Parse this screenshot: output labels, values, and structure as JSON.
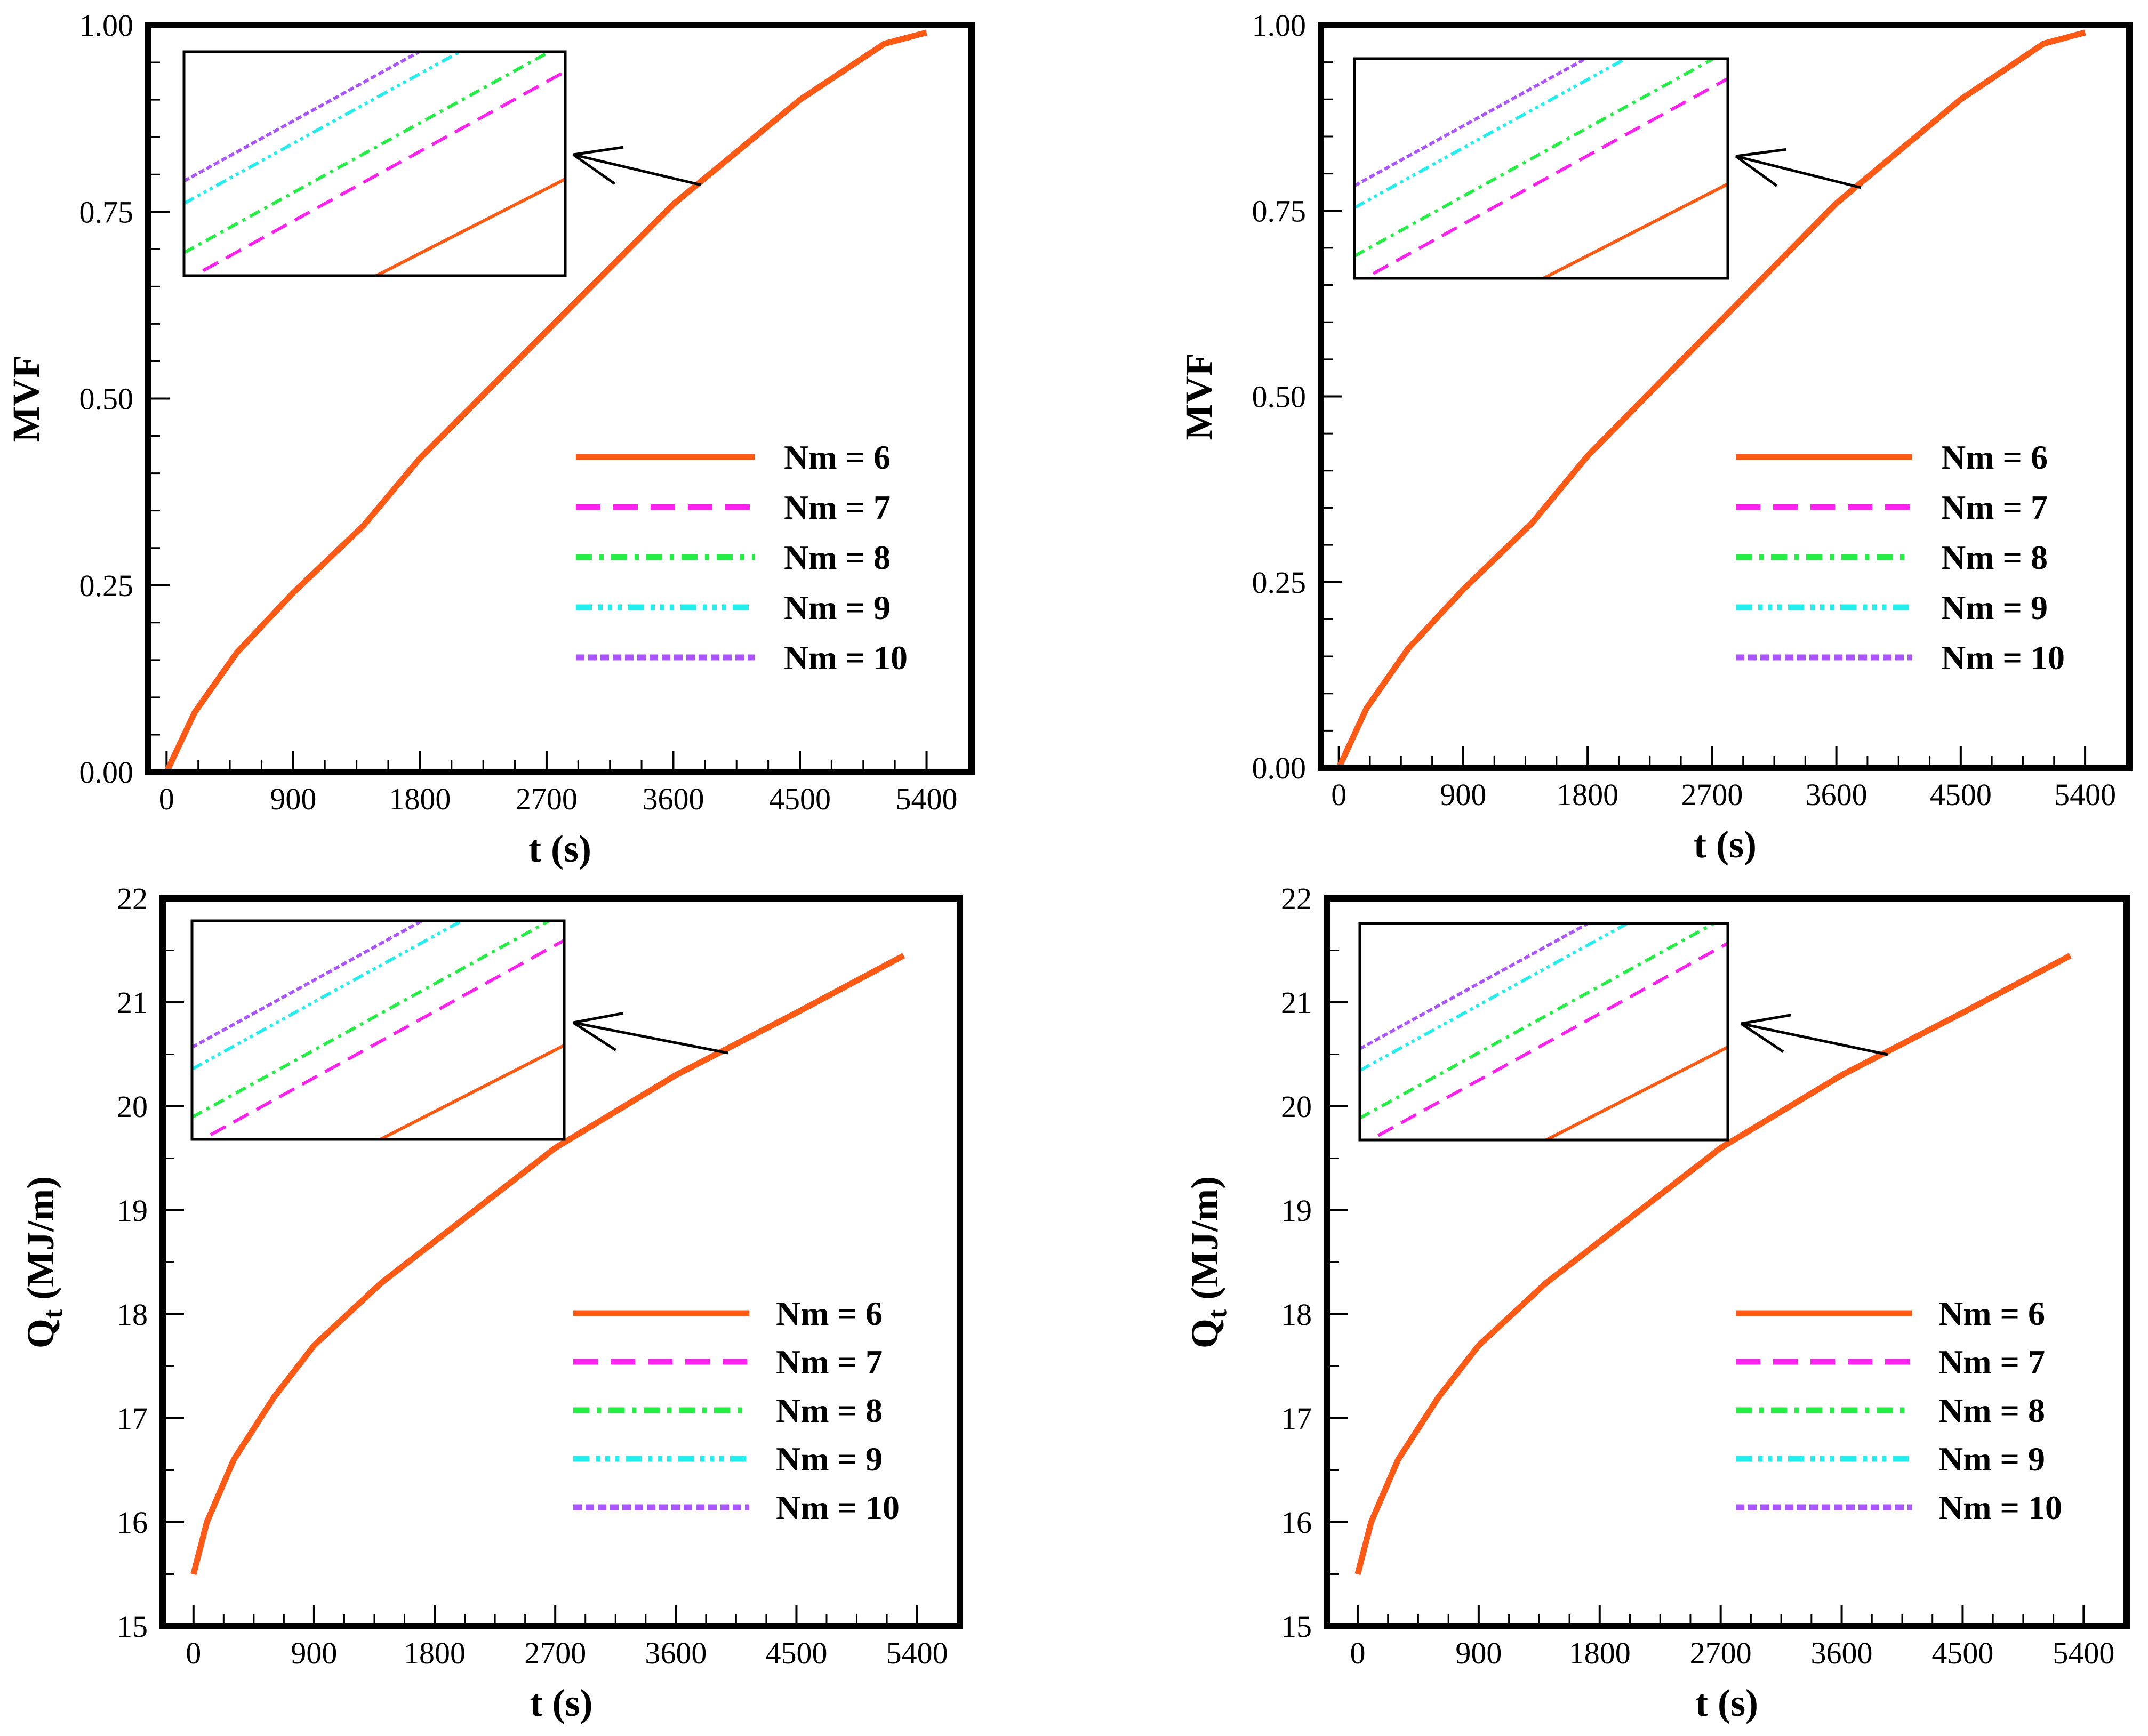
{
  "colors": {
    "nm6": "#ff5a14",
    "nm7": "#ff22ee",
    "nm8": "#22ee44",
    "nm9": "#22eeee",
    "nm10": "#aa55ff",
    "frame": "#000000"
  },
  "chart_data": [
    {
      "type": "line",
      "id": "mvf-left",
      "xlabel": "t (s)",
      "ylabel": "MVF",
      "xlim": [
        -130,
        5720
      ],
      "ylim": [
        0,
        1.0
      ],
      "xticks": [
        "0",
        "900",
        "1800",
        "2700",
        "3600",
        "4500",
        "5400"
      ],
      "yticks": [
        "0.00",
        "0.25",
        "0.50",
        "0.75",
        "1.00"
      ],
      "x": [
        0,
        200,
        500,
        900,
        1400,
        1800,
        2700,
        3600,
        4500,
        5100,
        5400
      ],
      "series": [
        {
          "name": "Nm = 6",
          "values": [
            0.0,
            0.08,
            0.16,
            0.24,
            0.33,
            0.42,
            0.59,
            0.76,
            0.9,
            0.975,
            0.99
          ]
        },
        {
          "name": "Nm = 7",
          "values": [
            0.0,
            0.08,
            0.16,
            0.24,
            0.33,
            0.42,
            0.59,
            0.76,
            0.9,
            0.975,
            0.99
          ]
        },
        {
          "name": "Nm = 8",
          "values": [
            0.0,
            0.08,
            0.16,
            0.24,
            0.33,
            0.42,
            0.59,
            0.76,
            0.9,
            0.975,
            0.99
          ]
        },
        {
          "name": "Nm = 9",
          "values": [
            0.0,
            0.08,
            0.16,
            0.24,
            0.33,
            0.42,
            0.59,
            0.76,
            0.9,
            0.975,
            0.99
          ]
        },
        {
          "name": "Nm = 10",
          "values": [
            0.0,
            0.08,
            0.16,
            0.24,
            0.33,
            0.42,
            0.59,
            0.76,
            0.9,
            0.975,
            0.99
          ]
        }
      ],
      "legend": [
        "Nm = 6",
        "Nm = 7",
        "Nm = 8",
        "Nm = 9",
        "Nm = 10"
      ]
    },
    {
      "type": "line",
      "id": "mvf-right",
      "xlabel": "t (s)",
      "ylabel": "MVF",
      "xlim": [
        -130,
        5720
      ],
      "ylim": [
        0,
        1.0
      ],
      "xticks": [
        "0",
        "900",
        "1800",
        "2700",
        "3600",
        "4500",
        "5400"
      ],
      "yticks": [
        "0.00",
        "0.25",
        "0.50",
        "0.75",
        "1.00"
      ],
      "x": [
        0,
        200,
        500,
        900,
        1400,
        1800,
        2700,
        3600,
        4500,
        5100,
        5400
      ],
      "series": [
        {
          "name": "Nm = 6",
          "values": [
            0.0,
            0.08,
            0.16,
            0.24,
            0.33,
            0.42,
            0.59,
            0.76,
            0.9,
            0.975,
            0.99
          ]
        },
        {
          "name": "Nm = 7",
          "values": [
            0.0,
            0.08,
            0.16,
            0.24,
            0.33,
            0.42,
            0.59,
            0.76,
            0.9,
            0.975,
            0.99
          ]
        },
        {
          "name": "Nm = 8",
          "values": [
            0.0,
            0.08,
            0.16,
            0.24,
            0.33,
            0.42,
            0.59,
            0.76,
            0.9,
            0.975,
            0.99
          ]
        },
        {
          "name": "Nm = 9",
          "values": [
            0.0,
            0.08,
            0.16,
            0.24,
            0.33,
            0.42,
            0.59,
            0.76,
            0.9,
            0.975,
            0.99
          ]
        },
        {
          "name": "Nm = 10",
          "values": [
            0.0,
            0.08,
            0.16,
            0.24,
            0.33,
            0.42,
            0.59,
            0.76,
            0.9,
            0.975,
            0.99
          ]
        }
      ],
      "legend": [
        "Nm = 6",
        "Nm = 7",
        "Nm = 8",
        "Nm = 9",
        "Nm = 10"
      ]
    },
    {
      "type": "line",
      "id": "qt-left",
      "xlabel": "t (s)",
      "ylabel": "Qt (MJ/m)",
      "xlim": [
        -230,
        5720
      ],
      "ylim": [
        15,
        22
      ],
      "xticks": [
        "0",
        "900",
        "1800",
        "2700",
        "3600",
        "4500",
        "5400"
      ],
      "yticks": [
        "15",
        "16",
        "17",
        "18",
        "19",
        "20",
        "21",
        "22"
      ],
      "x": [
        0,
        100,
        300,
        600,
        900,
        1400,
        1800,
        2700,
        3600,
        4500,
        5300
      ],
      "series": [
        {
          "name": "Nm = 6",
          "values": [
            15.5,
            16.0,
            16.6,
            17.2,
            17.7,
            18.3,
            18.7,
            19.6,
            20.3,
            20.9,
            21.45
          ]
        },
        {
          "name": "Nm = 7",
          "values": [
            15.5,
            16.0,
            16.6,
            17.2,
            17.7,
            18.3,
            18.7,
            19.6,
            20.3,
            20.9,
            21.45
          ]
        },
        {
          "name": "Nm = 8",
          "values": [
            15.5,
            16.0,
            16.6,
            17.2,
            17.7,
            18.3,
            18.7,
            19.6,
            20.3,
            20.9,
            21.45
          ]
        },
        {
          "name": "Nm = 9",
          "values": [
            15.5,
            16.0,
            16.6,
            17.2,
            17.7,
            18.3,
            18.7,
            19.6,
            20.3,
            20.9,
            21.45
          ]
        },
        {
          "name": "Nm = 10",
          "values": [
            15.5,
            16.0,
            16.6,
            17.2,
            17.7,
            18.3,
            18.7,
            19.6,
            20.3,
            20.9,
            21.45
          ]
        }
      ],
      "legend": [
        "Nm = 6",
        "Nm = 7",
        "Nm = 8",
        "Nm = 9",
        "Nm = 10"
      ]
    },
    {
      "type": "line",
      "id": "qt-right",
      "xlabel": "t (s)",
      "ylabel": "Qt (MJ/m)",
      "xlim": [
        -230,
        5720
      ],
      "ylim": [
        15,
        22
      ],
      "xticks": [
        "0",
        "900",
        "1800",
        "2700",
        "3600",
        "4500",
        "5400"
      ],
      "yticks": [
        "15",
        "16",
        "17",
        "18",
        "19",
        "20",
        "21",
        "22"
      ],
      "x": [
        0,
        100,
        300,
        600,
        900,
        1400,
        1800,
        2700,
        3600,
        4500,
        5300
      ],
      "series": [
        {
          "name": "Nm = 6",
          "values": [
            15.5,
            16.0,
            16.6,
            17.2,
            17.7,
            18.3,
            18.7,
            19.6,
            20.3,
            20.9,
            21.45
          ]
        },
        {
          "name": "Nm = 7",
          "values": [
            15.5,
            16.0,
            16.6,
            17.2,
            17.7,
            18.3,
            18.7,
            19.6,
            20.3,
            20.9,
            21.45
          ]
        },
        {
          "name": "Nm = 8",
          "values": [
            15.5,
            16.0,
            16.6,
            17.2,
            17.7,
            18.3,
            18.7,
            19.6,
            20.3,
            20.9,
            21.45
          ]
        },
        {
          "name": "Nm = 9",
          "values": [
            15.5,
            16.0,
            16.6,
            17.2,
            17.7,
            18.3,
            18.7,
            19.6,
            20.3,
            20.9,
            21.45
          ]
        },
        {
          "name": "Nm = 10",
          "values": [
            15.5,
            16.0,
            16.6,
            17.2,
            17.7,
            18.3,
            18.7,
            19.6,
            20.3,
            20.9,
            21.45
          ]
        }
      ],
      "legend": [
        "Nm = 6",
        "Nm = 7",
        "Nm = 8",
        "Nm = 9",
        "Nm = 10"
      ]
    }
  ]
}
